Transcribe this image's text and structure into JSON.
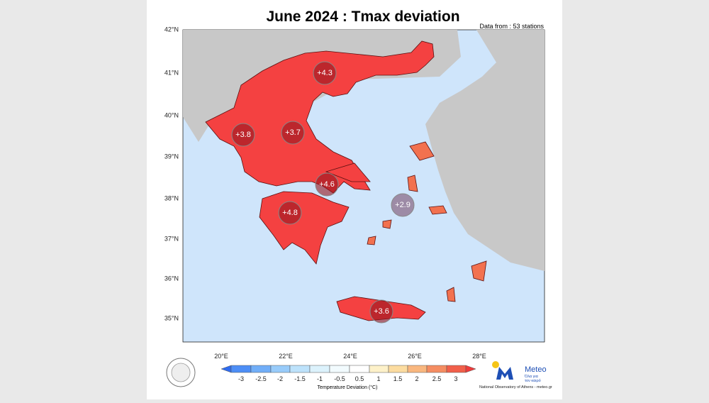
{
  "header": {
    "title": "June 2024 : Tmax deviation",
    "source_note": "Data from : 53 stations"
  },
  "map": {
    "lat_labels": [
      "42°N",
      "41°N",
      "40°N",
      "39°N",
      "38°N",
      "37°N",
      "36°N",
      "35°N"
    ],
    "lon_labels": [
      "20°E",
      "22°E",
      "24°E",
      "26°E",
      "28°E"
    ],
    "stations": [
      "+4.3",
      "+3.8",
      "+3.7",
      "+4.6",
      "+4.8",
      "+2.9",
      "+3.6"
    ]
  },
  "colorbar": {
    "labels": [
      "-3",
      "-2.5",
      "-2",
      "-1.5",
      "-1",
      "-0.5",
      "0.5",
      "1",
      "1.5",
      "2",
      "2.5",
      "3"
    ],
    "title": "Temperature Deviation (°C)"
  },
  "logo": {
    "name": "Meteo",
    "tagline": [
      "Όλα για",
      "τον καιρό"
    ],
    "credit": "National Observatory of Athens - meteo.gr"
  }
}
